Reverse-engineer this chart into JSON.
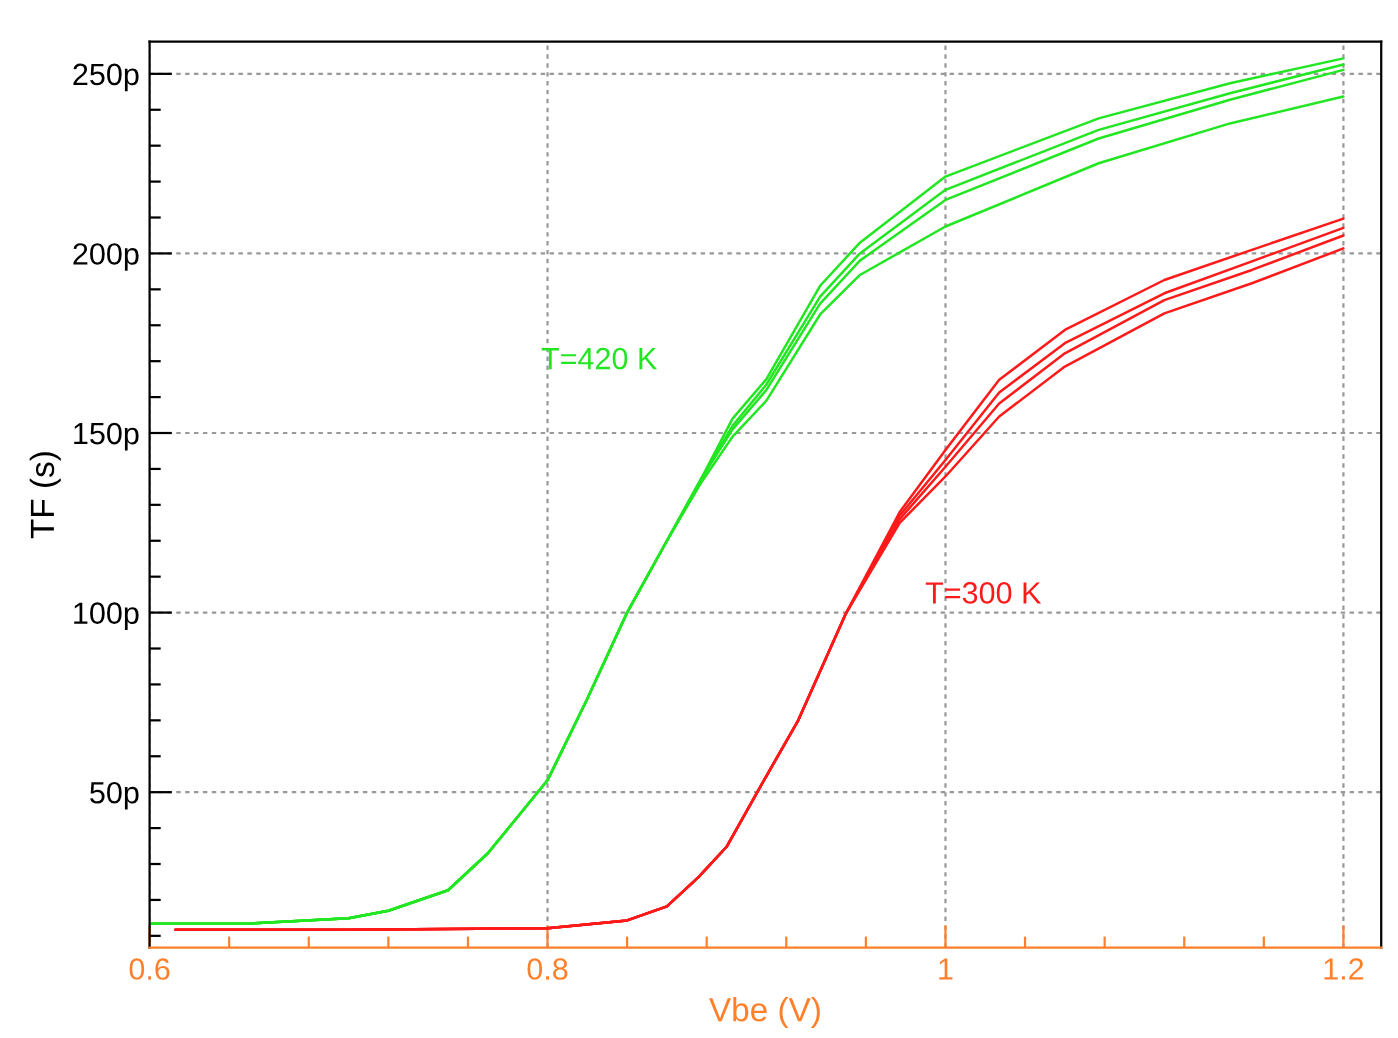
{
  "chart_data": {
    "type": "line",
    "xlabel": "Vbe (V)",
    "ylabel": "TF (s)",
    "xlim": [
      0.6,
      1.219
    ],
    "ylim": [
      6.7,
      259
    ],
    "xticks": [
      0.6,
      0.8,
      1,
      1.2,
      {
        "value": 0.64,
        "label": null
      },
      {
        "value": 0.68,
        "label": null
      },
      {
        "value": 0.72,
        "label": null
      },
      {
        "value": 0.76,
        "label": null
      },
      {
        "value": 0.84,
        "label": null
      },
      {
        "value": 0.88,
        "label": null
      },
      {
        "value": 0.92,
        "label": null
      },
      {
        "value": 0.96,
        "label": null
      },
      {
        "value": 1.04,
        "label": null
      },
      {
        "value": 1.08,
        "label": null
      },
      {
        "value": 1.12,
        "label": null
      },
      {
        "value": 1.16,
        "label": null
      }
    ],
    "yticks": [
      {
        "value": 50,
        "label": "50p"
      },
      {
        "value": 100,
        "label": "100p"
      },
      {
        "value": 150,
        "label": "150p"
      },
      {
        "value": 200,
        "label": "200p"
      },
      {
        "value": 250,
        "label": "250p"
      },
      {
        "value": 10,
        "label": null
      },
      {
        "value": 20,
        "label": null
      },
      {
        "value": 30,
        "label": null
      },
      {
        "value": 40,
        "label": null
      },
      {
        "value": 60,
        "label": null
      },
      {
        "value": 70,
        "label": null
      },
      {
        "value": 80,
        "label": null
      },
      {
        "value": 90,
        "label": null
      },
      {
        "value": 110,
        "label": null
      },
      {
        "value": 120,
        "label": null
      },
      {
        "value": 130,
        "label": null
      },
      {
        "value": 140,
        "label": null
      },
      {
        "value": 160,
        "label": null
      },
      {
        "value": 170,
        "label": null
      },
      {
        "value": 180,
        "label": null
      },
      {
        "value": 190,
        "label": null
      },
      {
        "value": 210,
        "label": null
      },
      {
        "value": 220,
        "label": null
      },
      {
        "value": 230,
        "label": null
      },
      {
        "value": 240,
        "label": null
      }
    ],
    "grid": true,
    "legend": false,
    "marker": "none",
    "line_style": "solid",
    "series": [
      {
        "name": "T=420 K",
        "color": "#22e622",
        "x": [
          0.6,
          0.65,
          0.7,
          0.72,
          0.75,
          0.77,
          0.8,
          0.82,
          0.84,
          0.86,
          0.877,
          0.893,
          0.91,
          0.937,
          0.957,
          1.0,
          1.077,
          1.143,
          1.2
        ],
        "values": [
          13.4,
          13.4,
          14.9,
          17,
          22.7,
          33,
          53.3,
          76,
          100,
          120,
          137,
          154,
          165,
          191,
          203,
          221.4,
          237.6,
          247.4,
          254.3
        ]
      },
      {
        "color": "#22e622",
        "x": [
          0.6,
          0.65,
          0.7,
          0.72,
          0.75,
          0.77,
          0.8,
          0.82,
          0.84,
          0.86,
          0.877,
          0.893,
          0.91,
          0.937,
          0.957,
          1.0,
          1.077,
          1.143,
          1.2
        ],
        "values": [
          13.4,
          13.4,
          14.9,
          17,
          22.7,
          33,
          53.3,
          76,
          100,
          120,
          137,
          152,
          163.5,
          188,
          200,
          217.7,
          234.4,
          244.6,
          252.6
        ]
      },
      {
        "color": "#22e622",
        "x": [
          0.6,
          0.65,
          0.7,
          0.72,
          0.75,
          0.77,
          0.8,
          0.82,
          0.84,
          0.86,
          0.877,
          0.893,
          0.91,
          0.937,
          0.957,
          1.0,
          1.077,
          1.143,
          1.2
        ],
        "values": [
          13.4,
          13.4,
          14.9,
          17,
          22.7,
          33,
          53.3,
          76,
          100,
          120,
          137,
          151,
          162,
          186,
          198,
          214.9,
          232,
          242.8,
          251.1
        ]
      },
      {
        "color": "#22e622",
        "x": [
          0.6,
          0.65,
          0.7,
          0.72,
          0.75,
          0.77,
          0.8,
          0.82,
          0.84,
          0.86,
          0.877,
          0.893,
          0.91,
          0.937,
          0.957,
          1.0,
          1.077,
          1.143,
          1.2
        ],
        "values": [
          13.4,
          13.4,
          14.9,
          17,
          22.7,
          33,
          53.3,
          76,
          100,
          120,
          136,
          149,
          159,
          183,
          194,
          207.5,
          225.1,
          236.2,
          243.7
        ]
      },
      {
        "name": "T=300 K",
        "color": "#ff1a1a",
        "x": [
          0.613,
          0.7,
          0.8,
          0.84,
          0.86,
          0.876,
          0.89,
          0.906,
          0.926,
          0.95,
          0.977,
          1.0,
          1.027,
          1.06,
          1.11,
          1.154,
          1.2
        ],
        "values": [
          11.7,
          11.7,
          12.1,
          14.3,
          18.2,
          26.4,
          34.8,
          50.6,
          70,
          99.8,
          128,
          145.3,
          164.8,
          178.7,
          192.6,
          201,
          209.7
        ]
      },
      {
        "color": "#ff1a1a",
        "x": [
          0.613,
          0.7,
          0.8,
          0.84,
          0.86,
          0.876,
          0.89,
          0.906,
          0.926,
          0.95,
          0.977,
          1.0,
          1.027,
          1.06,
          1.11,
          1.154,
          1.2
        ],
        "values": [
          11.7,
          11.7,
          12.1,
          14.3,
          18.2,
          26.4,
          34.8,
          50.6,
          70,
          99.8,
          127,
          142.5,
          161.3,
          175,
          188.9,
          197.8,
          207.1
        ]
      },
      {
        "color": "#ff1a1a",
        "x": [
          0.613,
          0.7,
          0.8,
          0.84,
          0.86,
          0.876,
          0.89,
          0.906,
          0.926,
          0.95,
          0.977,
          1.0,
          1.027,
          1.06,
          1.11,
          1.154,
          1.2
        ],
        "values": [
          11.7,
          11.7,
          12.1,
          14.3,
          18.2,
          26.4,
          34.8,
          50.6,
          70,
          99.8,
          126,
          140.6,
          158.2,
          172.2,
          187,
          195.4,
          205
        ]
      },
      {
        "color": "#ff1a1a",
        "x": [
          0.613,
          0.7,
          0.8,
          0.84,
          0.86,
          0.876,
          0.89,
          0.906,
          0.926,
          0.95,
          0.977,
          1.0,
          1.027,
          1.06,
          1.11,
          1.154,
          1.2
        ],
        "values": [
          11.7,
          11.7,
          12.1,
          14.3,
          18.2,
          26.4,
          34.8,
          50.6,
          70,
          99.8,
          125,
          137.9,
          154.6,
          168.5,
          183.3,
          191.7,
          201.4
        ]
      }
    ]
  }
}
